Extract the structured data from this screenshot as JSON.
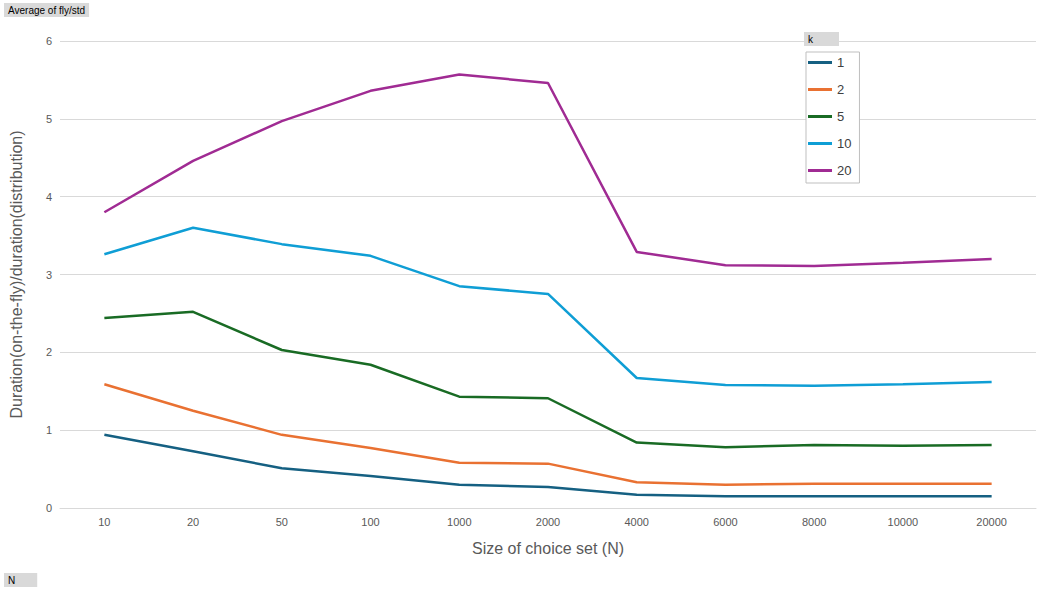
{
  "chart_data": {
    "type": "line",
    "title": "Average of fly/std",
    "legend_title": "k",
    "annotations": [
      "N"
    ],
    "x_label": "Size of choice set (N)",
    "y_label": "Duration(on-the-fly)/duration(distribution)",
    "categories": [
      "10",
      "20",
      "50",
      "100",
      "1000",
      "2000",
      "4000",
      "6000",
      "8000",
      "10000",
      "20000"
    ],
    "series": [
      {
        "name": "1",
        "color": "#156082",
        "values": [
          0.94,
          0.73,
          0.51,
          0.41,
          0.3,
          0.27,
          0.17,
          0.15,
          0.15,
          0.15,
          0.15
        ]
      },
      {
        "name": "2",
        "color": "#E97132",
        "values": [
          1.59,
          1.25,
          0.94,
          0.77,
          0.58,
          0.57,
          0.33,
          0.3,
          0.31,
          0.31,
          0.31
        ]
      },
      {
        "name": "5",
        "color": "#196B24",
        "values": [
          2.44,
          2.52,
          2.03,
          1.84,
          1.43,
          1.41,
          0.84,
          0.78,
          0.81,
          0.8,
          0.81
        ]
      },
      {
        "name": "10",
        "color": "#0F9ED5",
        "values": [
          3.26,
          3.6,
          3.39,
          3.24,
          2.85,
          2.75,
          1.67,
          1.58,
          1.57,
          1.59,
          1.62
        ]
      },
      {
        "name": "20",
        "color": "#A02B93",
        "values": [
          3.8,
          4.46,
          4.97,
          5.36,
          5.57,
          5.46,
          3.29,
          3.12,
          3.11,
          3.15,
          3.2
        ]
      }
    ],
    "ylim": [
      0,
      6
    ],
    "yticks": [
      0,
      1,
      2,
      3,
      4,
      5,
      6
    ],
    "grid": true,
    "legend": "top-right"
  }
}
